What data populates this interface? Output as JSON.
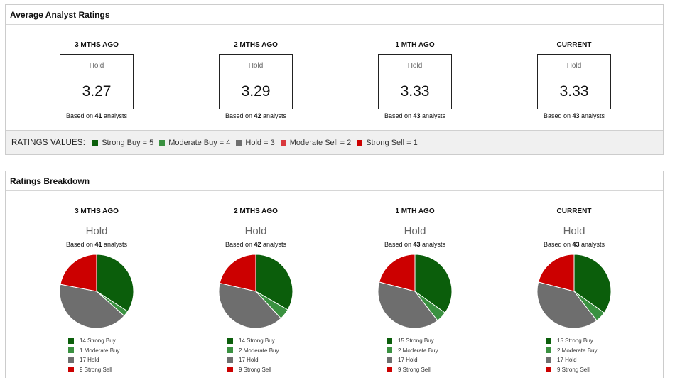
{
  "avg": {
    "title": "Average Analyst Ratings",
    "columns": [
      {
        "period": "3 MTHS AGO",
        "label": "Hold",
        "value": "3.27",
        "based_prefix": "Based on",
        "count": "41",
        "based_suffix": "analysts"
      },
      {
        "period": "2 MTHS AGO",
        "label": "Hold",
        "value": "3.29",
        "based_prefix": "Based on",
        "count": "42",
        "based_suffix": "analysts"
      },
      {
        "period": "1 MTH AGO",
        "label": "Hold",
        "value": "3.33",
        "based_prefix": "Based on",
        "count": "43",
        "based_suffix": "analysts"
      },
      {
        "period": "CURRENT",
        "label": "Hold",
        "value": "3.33",
        "based_prefix": "Based on",
        "count": "43",
        "based_suffix": "analysts"
      }
    ],
    "legend_title": "RATINGS VALUES:",
    "legend": [
      {
        "label": "Strong Buy = 5",
        "color": "#0b5e0b"
      },
      {
        "label": "Moderate Buy = 4",
        "color": "#3a9140"
      },
      {
        "label": "Hold = 3",
        "color": "#6e6e6e"
      },
      {
        "label": "Moderate Sell = 2",
        "color": "#d9383d"
      },
      {
        "label": "Strong Sell = 1",
        "color": "#cc0000"
      }
    ]
  },
  "breakdown": {
    "title": "Ratings Breakdown",
    "colors": {
      "strong_buy": "#0b5e0b",
      "moderate_buy": "#3a9140",
      "hold": "#6e6e6e",
      "strong_sell": "#cc0000"
    },
    "columns": [
      {
        "period": "3 MTHS AGO",
        "rating": "Hold",
        "based_prefix": "Based on",
        "count": "41",
        "based_suffix": "analysts",
        "slices": [
          {
            "key": "strong_buy",
            "value": 14,
            "label": "14 Strong Buy"
          },
          {
            "key": "moderate_buy",
            "value": 1,
            "label": "1 Moderate Buy"
          },
          {
            "key": "hold",
            "value": 17,
            "label": "17 Hold"
          },
          {
            "key": "strong_sell",
            "value": 9,
            "label": "9 Strong Sell"
          }
        ]
      },
      {
        "period": "2 MTHS AGO",
        "rating": "Hold",
        "based_prefix": "Based on",
        "count": "42",
        "based_suffix": "analysts",
        "slices": [
          {
            "key": "strong_buy",
            "value": 14,
            "label": "14 Strong Buy"
          },
          {
            "key": "moderate_buy",
            "value": 2,
            "label": "2 Moderate Buy"
          },
          {
            "key": "hold",
            "value": 17,
            "label": "17 Hold"
          },
          {
            "key": "strong_sell",
            "value": 9,
            "label": "9 Strong Sell"
          }
        ]
      },
      {
        "period": "1 MTH AGO",
        "rating": "Hold",
        "based_prefix": "Based on",
        "count": "43",
        "based_suffix": "analysts",
        "slices": [
          {
            "key": "strong_buy",
            "value": 15,
            "label": "15 Strong Buy"
          },
          {
            "key": "moderate_buy",
            "value": 2,
            "label": "2 Moderate Buy"
          },
          {
            "key": "hold",
            "value": 17,
            "label": "17 Hold"
          },
          {
            "key": "strong_sell",
            "value": 9,
            "label": "9 Strong Sell"
          }
        ]
      },
      {
        "period": "CURRENT",
        "rating": "Hold",
        "based_prefix": "Based on",
        "count": "43",
        "based_suffix": "analysts",
        "slices": [
          {
            "key": "strong_buy",
            "value": 15,
            "label": "15 Strong Buy"
          },
          {
            "key": "moderate_buy",
            "value": 2,
            "label": "2 Moderate Buy"
          },
          {
            "key": "hold",
            "value": 17,
            "label": "17 Hold"
          },
          {
            "key": "strong_sell",
            "value": 9,
            "label": "9 Strong Sell"
          }
        ]
      }
    ]
  },
  "chart_data": [
    {
      "type": "pie",
      "title": "3 MTHS AGO",
      "categories": [
        "Strong Buy",
        "Moderate Buy",
        "Hold",
        "Strong Sell"
      ],
      "values": [
        14,
        1,
        17,
        9
      ]
    },
    {
      "type": "pie",
      "title": "2 MTHS AGO",
      "categories": [
        "Strong Buy",
        "Moderate Buy",
        "Hold",
        "Strong Sell"
      ],
      "values": [
        14,
        2,
        17,
        9
      ]
    },
    {
      "type": "pie",
      "title": "1 MTH AGO",
      "categories": [
        "Strong Buy",
        "Moderate Buy",
        "Hold",
        "Strong Sell"
      ],
      "values": [
        15,
        2,
        17,
        9
      ]
    },
    {
      "type": "pie",
      "title": "CURRENT",
      "categories": [
        "Strong Buy",
        "Moderate Buy",
        "Hold",
        "Strong Sell"
      ],
      "values": [
        15,
        2,
        17,
        9
      ]
    }
  ]
}
